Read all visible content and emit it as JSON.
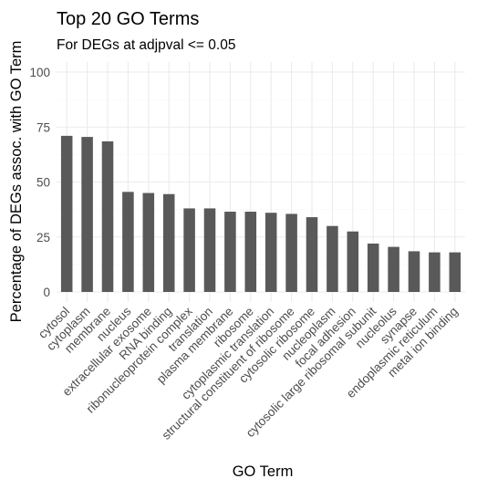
{
  "chart_data": {
    "type": "bar",
    "title": "Top 20 GO Terms",
    "subtitle": "For DEGs at adjpval <= 0.05",
    "xlabel": "GO Term",
    "ylabel": "Percentage of DEGs assoc. with GO Term",
    "ylim": [
      0,
      100
    ],
    "yticks": [
      "0",
      "25",
      "50",
      "75",
      "100"
    ],
    "categories": [
      "cytosol",
      "cytoplasm",
      "membrane",
      "nucleus",
      "extracellular exosome",
      "RNA binding",
      "ribonucleoprotein complex",
      "translation",
      "plasma membrane",
      "ribosome",
      "cytoplasmic translation",
      "structural constituent of ribosome",
      "cytosolic ribosome",
      "nucleoplasm",
      "focal adhesion",
      "cytosolic large ribosomal subunit",
      "nucleolus",
      "synapse",
      "endoplasmic reticulum",
      "metal ion binding"
    ],
    "values": [
      71,
      70.5,
      68.5,
      45.5,
      45,
      44.5,
      38,
      38,
      36.5,
      36.5,
      36,
      35.5,
      34,
      30,
      27.5,
      22,
      20.5,
      18.5,
      18,
      18
    ],
    "bar_color": "#595959",
    "grid": true,
    "legend": "none"
  }
}
